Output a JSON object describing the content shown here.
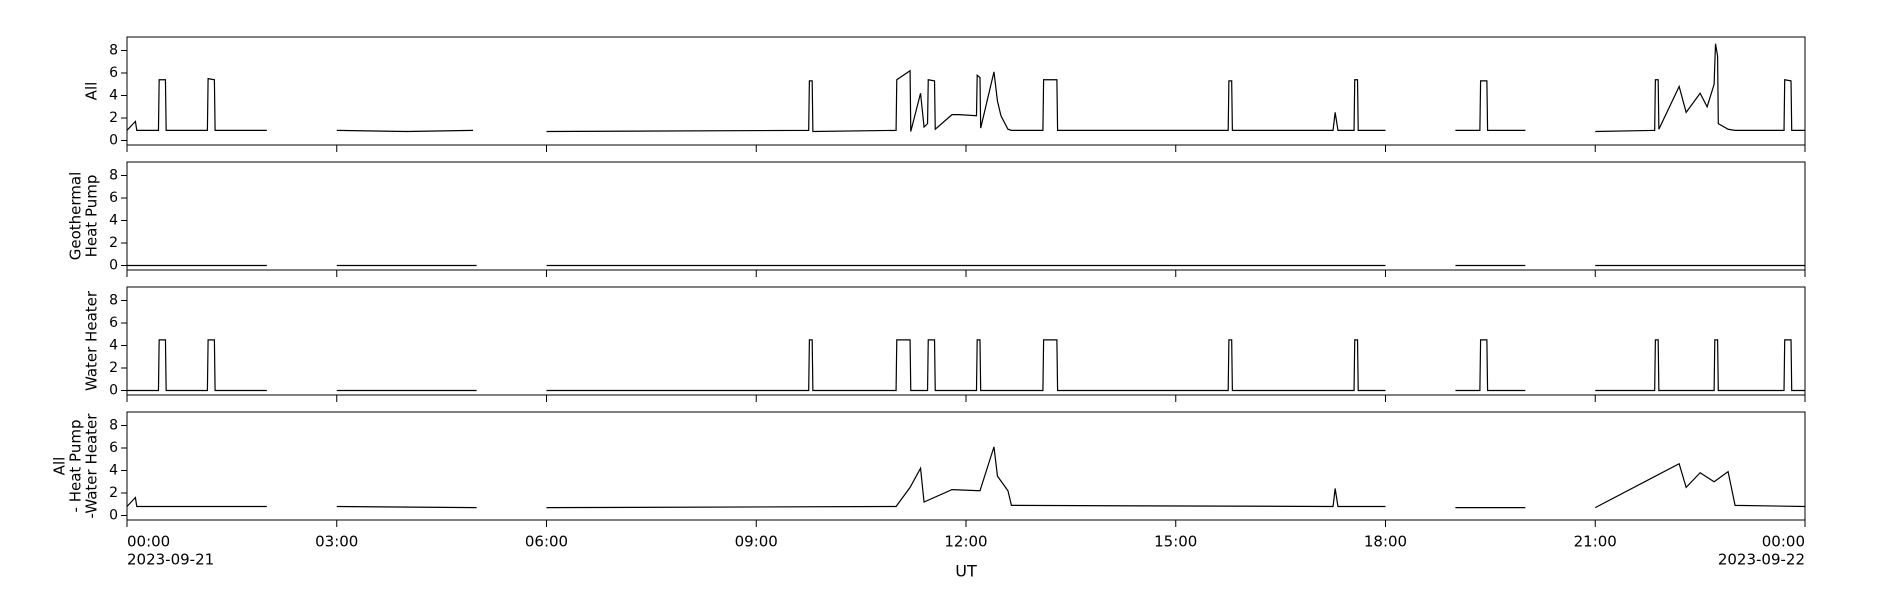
{
  "x_axis": {
    "xlim": [
      0,
      24
    ],
    "xticks": [
      {
        "value": 0,
        "label": "00:00"
      },
      {
        "value": 3,
        "label": "03:00"
      },
      {
        "value": 6,
        "label": "06:00"
      },
      {
        "value": 9,
        "label": "09:00"
      },
      {
        "value": 12,
        "label": "12:00"
      },
      {
        "value": 15,
        "label": "15:00"
      },
      {
        "value": 18,
        "label": "18:00"
      },
      {
        "value": 21,
        "label": "21:00"
      },
      {
        "value": 24,
        "label": "00:00"
      }
    ],
    "date_labels": [
      {
        "value": 0,
        "label": "2023-09-21"
      },
      {
        "value": 24,
        "label": "2023-09-22"
      }
    ],
    "xlabel": "UT"
  },
  "chart_data": [
    {
      "type": "line",
      "ylabel": [
        "All"
      ],
      "color": "#000000",
      "ylim": [
        -0.4,
        9.2
      ],
      "yticks": [
        0,
        2,
        4,
        6,
        8
      ],
      "x": [
        0,
        0.12,
        0.14,
        0.2,
        0.45,
        0.46,
        0.55,
        0.56,
        1.15,
        1.16,
        1.25,
        1.26,
        2,
        2.5,
        3,
        4,
        4.95,
        5.5,
        6,
        9.75,
        9.76,
        9.8,
        9.81,
        11,
        11.01,
        11.2,
        11.21,
        11.35,
        11.4,
        11.45,
        11.46,
        11.55,
        11.56,
        11.8,
        11.9,
        12.15,
        12.16,
        12.2,
        12.21,
        12.4,
        12.45,
        12.5,
        12.6,
        12.65,
        13.1,
        13.11,
        13.3,
        13.31,
        15.75,
        15.76,
        15.8,
        15.81,
        17.25,
        17.28,
        17.32,
        17.55,
        17.56,
        17.6,
        17.61,
        18,
        18.5,
        19,
        19.35,
        19.36,
        19.45,
        19.46,
        20,
        20.5,
        21,
        21.85,
        21.86,
        21.9,
        21.91,
        22.2,
        22.3,
        22.5,
        22.6,
        22.7,
        22.72,
        22.75,
        22.76,
        22.9,
        23,
        23.7,
        23.71,
        23.8,
        23.81,
        24
      ],
      "values": [
        0.9,
        1.7,
        0.9,
        0.9,
        0.9,
        5.4,
        5.4,
        0.9,
        0.9,
        5.5,
        5.4,
        0.9,
        0.9,
        null,
        0.9,
        0.8,
        0.9,
        null,
        0.8,
        0.9,
        5.3,
        5.3,
        0.8,
        0.9,
        5.4,
        6.2,
        0.8,
        4.2,
        1.2,
        1.5,
        5.4,
        5.3,
        1,
        2.3,
        2.3,
        2.2,
        5.8,
        5.6,
        1.1,
        6.1,
        3.5,
        2.2,
        1,
        0.9,
        0.9,
        5.4,
        5.4,
        0.9,
        0.9,
        5.3,
        5.3,
        0.9,
        0.9,
        2.5,
        0.9,
        0.9,
        5.4,
        5.4,
        0.9,
        0.9,
        null,
        0.9,
        0.9,
        5.3,
        5.3,
        0.9,
        0.9,
        null,
        0.8,
        0.9,
        5.4,
        5.4,
        1,
        4.8,
        2.5,
        4.2,
        3,
        5,
        8.6,
        7.5,
        1.5,
        1,
        0.9,
        0.9,
        5.4,
        5.3,
        0.9,
        0.9
      ]
    },
    {
      "type": "line",
      "ylabel": [
        "Geothermal",
        "Heat Pump"
      ],
      "color": "#000000",
      "ylim": [
        -0.4,
        9.2
      ],
      "yticks": [
        0,
        2,
        4,
        6,
        8
      ],
      "x": [
        0,
        2,
        2.5,
        3,
        5,
        5.5,
        6,
        18,
        18.5,
        19,
        20,
        20.5,
        21,
        24
      ],
      "values": [
        0,
        0,
        null,
        0,
        0,
        null,
        0,
        0,
        null,
        0,
        0,
        null,
        0,
        0
      ]
    },
    {
      "type": "line",
      "ylabel": [
        "Water Heater"
      ],
      "color": "#000000",
      "ylim": [
        -0.4,
        9.2
      ],
      "yticks": [
        0,
        2,
        4,
        6,
        8
      ],
      "x": [
        0,
        0.45,
        0.46,
        0.55,
        0.56,
        1.15,
        1.16,
        1.25,
        1.26,
        2,
        2.5,
        3,
        5,
        5.5,
        6,
        9.75,
        9.76,
        9.8,
        9.81,
        11,
        11.01,
        11.2,
        11.21,
        11.45,
        11.46,
        11.55,
        11.56,
        12.15,
        12.16,
        12.2,
        12.21,
        13.1,
        13.11,
        13.3,
        13.31,
        15.75,
        15.76,
        15.8,
        15.81,
        17.55,
        17.56,
        17.6,
        17.61,
        18,
        18.5,
        19,
        19.35,
        19.36,
        19.45,
        19.46,
        20,
        20.5,
        21,
        21.85,
        21.86,
        21.9,
        21.91,
        22.7,
        22.71,
        22.75,
        22.76,
        23.7,
        23.71,
        23.8,
        23.81,
        24
      ],
      "values": [
        0,
        0,
        4.5,
        4.5,
        0,
        0,
        4.5,
        4.5,
        0,
        0,
        null,
        0,
        0,
        null,
        0,
        0,
        4.5,
        4.5,
        0,
        0,
        4.5,
        4.5,
        0,
        0,
        4.5,
        4.5,
        0,
        0,
        4.5,
        4.5,
        0,
        0,
        4.5,
        4.5,
        0,
        0,
        4.5,
        4.5,
        0,
        0,
        4.5,
        4.5,
        0,
        0,
        null,
        0,
        0,
        4.5,
        4.5,
        0,
        0,
        null,
        0,
        0,
        4.5,
        4.5,
        0,
        0,
        4.5,
        4.5,
        0,
        0,
        4.5,
        4.5,
        0,
        0
      ]
    },
    {
      "type": "line",
      "ylabel": [
        "All",
        "- Heat Pump",
        "-Water Heater"
      ],
      "color": "#000000",
      "ylim": [
        -0.4,
        9.2
      ],
      "yticks": [
        0,
        2,
        4,
        6,
        8
      ],
      "x": [
        0,
        0.12,
        0.14,
        2,
        2.5,
        3,
        5,
        5.5,
        6,
        11,
        11.2,
        11.35,
        11.4,
        11.8,
        12.2,
        12.4,
        12.45,
        12.6,
        12.65,
        17.25,
        17.28,
        17.32,
        18,
        18.5,
        19,
        20,
        20.5,
        21,
        22.2,
        22.3,
        22.5,
        22.7,
        22.9,
        23,
        24
      ],
      "values": [
        0.8,
        1.6,
        0.8,
        0.8,
        null,
        0.8,
        0.7,
        null,
        0.7,
        0.8,
        2.5,
        4.2,
        1.2,
        2.3,
        2.2,
        6.1,
        3.5,
        2.2,
        0.9,
        0.8,
        2.4,
        0.8,
        0.8,
        null,
        0.7,
        0.7,
        null,
        0.7,
        4.6,
        2.5,
        3.8,
        3,
        3.9,
        0.9,
        0.8
      ]
    }
  ]
}
